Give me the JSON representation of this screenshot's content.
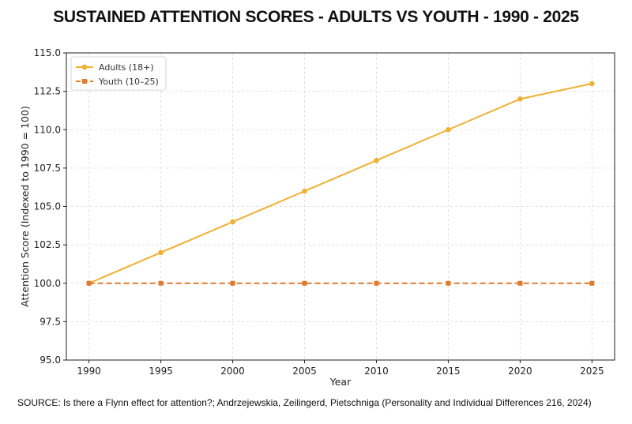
{
  "title": "SUSTAINED ATTENTION SCORES - ADULTS VS YOUTH - 1990 - 2025",
  "source": "SOURCE: Is there a Flynn effect for attention?; Andrzejewskia, Zeilingerd, Pietschniga (Personality and Individual Differences 216, 2024)",
  "chart_data": {
    "type": "line",
    "xlabel": "Year",
    "ylabel": "Attention Score (Indexed to 1990 = 100)",
    "x": [
      1990,
      1995,
      2000,
      2005,
      2010,
      2015,
      2020,
      2025
    ],
    "xticks": [
      "1990",
      "1995",
      "2000",
      "2005",
      "2010",
      "2015",
      "2020",
      "2025"
    ],
    "ylim": [
      95.0,
      115.0
    ],
    "yticks": [
      "95.0",
      "97.5",
      "100.0",
      "102.5",
      "105.0",
      "107.5",
      "110.0",
      "112.5",
      "115.0"
    ],
    "grid": true,
    "legend_position": "top-left",
    "series": [
      {
        "name": "Adults (18+)",
        "color": "#F0B132",
        "line_style": "solid",
        "marker": "circle",
        "values": [
          100,
          102,
          104,
          106,
          108,
          110,
          112,
          113
        ]
      },
      {
        "name": "Youth (10–25)",
        "color": "#E07B2E",
        "line_style": "dashed",
        "marker": "square",
        "values": [
          100,
          100,
          100,
          100,
          100,
          100,
          100,
          100
        ]
      }
    ]
  }
}
